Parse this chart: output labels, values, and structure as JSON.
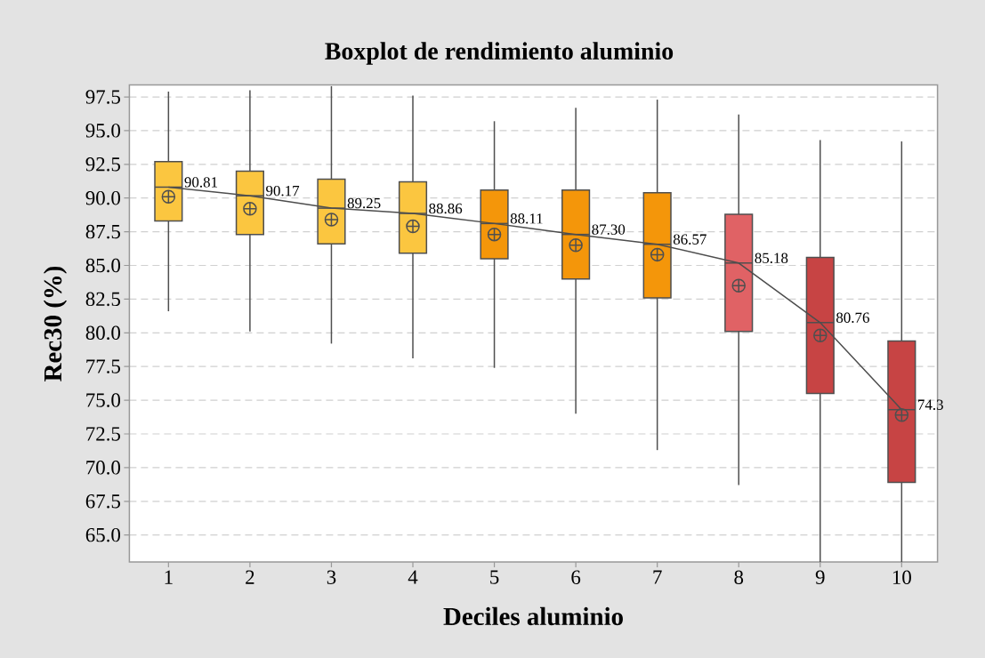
{
  "chart_data": {
    "type": "box",
    "title": "Boxplot de rendimiento aluminio",
    "xlabel": "Deciles aluminio",
    "ylabel": "Rec30 (%)",
    "categories": [
      "1",
      "2",
      "3",
      "4",
      "5",
      "6",
      "7",
      "8",
      "9",
      "10"
    ],
    "ylim": [
      63.0,
      98.4
    ],
    "yticks": [
      {
        "value": 65,
        "label": "65.0"
      },
      67.5,
      {
        "value": 70,
        "label": "70.0"
      },
      72.5,
      {
        "value": 75,
        "label": "75.0"
      },
      77.5,
      {
        "value": 80,
        "label": "80.0"
      },
      82.5,
      {
        "value": 85,
        "label": "85.0"
      },
      87.5,
      {
        "value": 90,
        "label": "90.0"
      },
      92.5,
      {
        "value": 95,
        "label": "95.0"
      },
      97.5
    ],
    "grid": "y",
    "series": [
      {
        "colors": [
          "#FBC640",
          "#FBC640",
          "#FBC640",
          "#FBC640",
          "#F4960A",
          "#F4960A",
          "#F4960A",
          "#E06265",
          "#C74444",
          "#C74444"
        ],
        "boxes": [
          {
            "low": 81.6,
            "q1": 88.3,
            "median": 90.81,
            "q3": 92.7,
            "high": 97.9,
            "mean": 90.1
          },
          {
            "low": 80.1,
            "q1": 87.3,
            "median": 90.17,
            "q3": 92.0,
            "high": 98.0,
            "mean": 89.2
          },
          {
            "low": 79.2,
            "q1": 86.6,
            "median": 89.25,
            "q3": 91.4,
            "high": 98.3,
            "mean": 88.4
          },
          {
            "low": 78.1,
            "q1": 85.9,
            "median": 88.86,
            "q3": 91.2,
            "high": 97.6,
            "mean": 87.9
          },
          {
            "low": 77.4,
            "q1": 85.5,
            "median": 88.11,
            "q3": 90.6,
            "high": 95.7,
            "mean": 87.3
          },
          {
            "low": 74.0,
            "q1": 84.0,
            "median": 87.3,
            "q3": 90.6,
            "high": 96.7,
            "mean": 86.5
          },
          {
            "low": 71.3,
            "q1": 82.6,
            "median": 86.57,
            "q3": 90.4,
            "high": 97.3,
            "mean": 85.8
          },
          {
            "low": 68.7,
            "q1": 80.1,
            "median": 85.18,
            "q3": 88.8,
            "high": 96.2,
            "mean": 83.5
          },
          {
            "low": 63.0,
            "q1": 75.5,
            "median": 80.76,
            "q3": 85.6,
            "high": 94.3,
            "mean": 79.8
          },
          {
            "low": 63.0,
            "q1": 68.9,
            "median": 74.3,
            "q3": 79.4,
            "high": 94.2,
            "mean": 73.9
          }
        ]
      },
      {
        "type": "line",
        "color": "#4D4D4D",
        "values": [
          90.81,
          90.17,
          89.25,
          88.86,
          88.11,
          87.3,
          86.57,
          85.18,
          80.76,
          74.3
        ],
        "value_labels": [
          "90.81",
          "90.17",
          "89.25",
          "88.86",
          "88.11",
          "87.30",
          "86.57",
          "85.18",
          "80.76",
          "74.3"
        ]
      }
    ]
  }
}
